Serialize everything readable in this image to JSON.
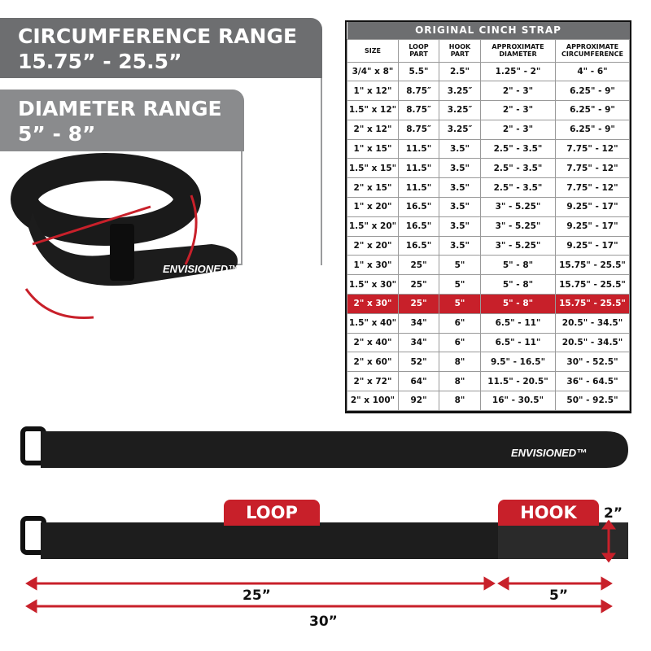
{
  "circumference": {
    "title": "CIRCUMFERENCE RANGE",
    "value": "15.75” - 25.5”"
  },
  "diameter": {
    "title": "DIAMETER RANGE",
    "value": "5” - 8”"
  },
  "brand": "ENVISIONED™",
  "table": {
    "title": "ORIGINAL CINCH STRAP",
    "headers": [
      "SIZE",
      "LOOP PART",
      "HOOK PART",
      "APPROXIMATE DIAMETER",
      "APPROXIMATE CIRCUMFERENCE"
    ],
    "highlight_row": 12,
    "highlight_color": "#c8202a",
    "rows": [
      [
        "3/4\" x 8\"",
        "5.5\"",
        "2.5\"",
        "1.25\" - 2\"",
        "4\" - 6\""
      ],
      [
        "1\" x 12\"",
        "8.75″",
        "3.25″",
        "2\" - 3\"",
        "6.25\" - 9\""
      ],
      [
        "1.5\" x 12\"",
        "8.75″",
        "3.25″",
        "2\" - 3\"",
        "6.25\" - 9\""
      ],
      [
        "2\" x 12\"",
        "8.75″",
        "3.25″",
        "2\" - 3\"",
        "6.25\" - 9\""
      ],
      [
        "1\" x 15\"",
        "11.5\"",
        "3.5\"",
        "2.5\" - 3.5\"",
        "7.75\" - 12\""
      ],
      [
        "1.5\" x 15\"",
        "11.5\"",
        "3.5\"",
        "2.5\" - 3.5\"",
        "7.75\" - 12\""
      ],
      [
        "2\" x 15\"",
        "11.5\"",
        "3.5\"",
        "2.5\" - 3.5\"",
        "7.75\" - 12\""
      ],
      [
        "1\" x 20\"",
        "16.5\"",
        "3.5\"",
        "3\" - 5.25\"",
        "9.25\" - 17\""
      ],
      [
        "1.5\" x 20\"",
        "16.5\"",
        "3.5\"",
        "3\" - 5.25\"",
        "9.25\" - 17\""
      ],
      [
        "2\" x 20\"",
        "16.5\"",
        "3.5\"",
        "3\" - 5.25\"",
        "9.25\" - 17\""
      ],
      [
        "1\" x 30\"",
        "25\"",
        "5\"",
        "5\" - 8\"",
        "15.75\" - 25.5\""
      ],
      [
        "1.5\" x 30\"",
        "25\"",
        "5\"",
        "5\" - 8\"",
        "15.75\" - 25.5\""
      ],
      [
        "2\" x 30\"",
        "25\"",
        "5\"",
        "5\" - 8\"",
        "15.75\" - 25.5\""
      ],
      [
        "1.5\" x 40\"",
        "34\"",
        "6\"",
        "6.5\" - 11\"",
        "20.5\" - 34.5\""
      ],
      [
        "2\" x 40\"",
        "34\"",
        "6\"",
        "6.5\" - 11\"",
        "20.5\" - 34.5\""
      ],
      [
        "2\" x 60\"",
        "52\"",
        "8\"",
        "9.5\" - 16.5\"",
        "30\" - 52.5\""
      ],
      [
        "2\" x 72\"",
        "64\"",
        "8\"",
        "11.5\" - 20.5\"",
        "36\" - 64.5\""
      ],
      [
        "2\" x 100\"",
        "92\"",
        "8\"",
        "16\" - 30.5\"",
        "50\" - 92.5\""
      ]
    ]
  },
  "labels": {
    "loop": "LOOP",
    "hook": "HOOK",
    "width": "2”",
    "loop_length": "25”",
    "hook_length": "5”",
    "total_length": "30”"
  }
}
